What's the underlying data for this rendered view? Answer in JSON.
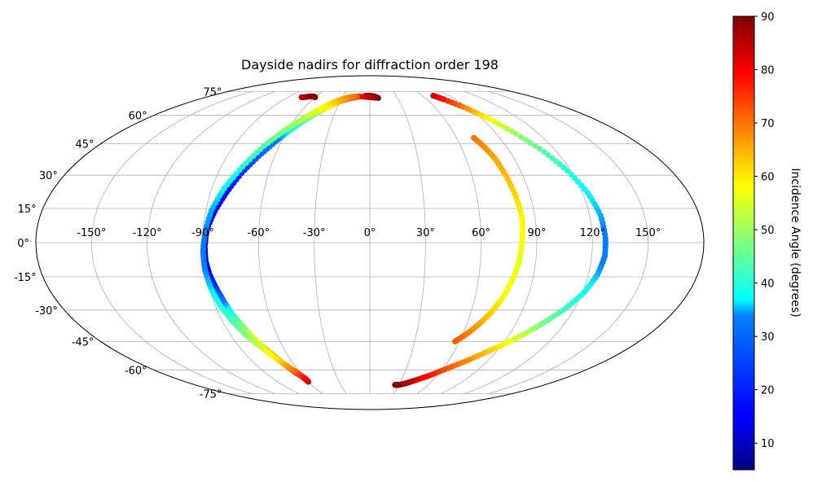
{
  "chart_data": {
    "type": "scatter",
    "projection": "mollweide",
    "title": "Dayside nadirs for diffraction order 198",
    "grid": true,
    "lon_ticks": [
      -150,
      -120,
      -90,
      -60,
      -30,
      0,
      30,
      60,
      90,
      120,
      150
    ],
    "lon_tick_labels": [
      "-150°",
      "-120°",
      "-90°",
      "-60°",
      "-30°",
      "0°",
      "30°",
      "60°",
      "90°",
      "120°",
      "150°"
    ],
    "lat_ticks": [
      -75,
      -60,
      -45,
      -30,
      -15,
      0,
      15,
      30,
      45,
      60,
      75
    ],
    "lat_tick_labels": [
      "-75°",
      "-60°",
      "-45°",
      "-30°",
      "-15°",
      "0°",
      "15°",
      "30°",
      "45°",
      "60°",
      "75°"
    ],
    "colorbar": {
      "label": "Incidence Angle (degrees)",
      "range": [
        5,
        90
      ],
      "ticks": [
        10,
        20,
        30,
        40,
        50,
        60,
        70,
        80,
        90
      ],
      "colormap": "jet"
    },
    "series": [
      {
        "points": [
          [
            -75,
            71,
            82
          ],
          [
            -72,
            71,
            85
          ],
          [
            -68,
            71.5,
            87
          ],
          [
            -65,
            71.5,
            89
          ],
          [
            -63,
            71.5,
            90
          ],
          [
            -60,
            71,
            90
          ]
        ]
      },
      {
        "points": [
          [
            -5,
            72,
            84
          ],
          [
            0,
            72,
            87
          ],
          [
            5,
            71.5,
            89
          ],
          [
            9,
            70.5,
            90
          ],
          [
            -12,
            71.5,
            80
          ],
          [
            -20,
            70.5,
            74
          ],
          [
            -28,
            69,
            67
          ],
          [
            -36,
            66,
            60
          ],
          [
            -44,
            62,
            52
          ],
          [
            -52,
            57,
            44
          ],
          [
            -58,
            52,
            38
          ],
          [
            -64,
            46,
            33
          ],
          [
            -70,
            39,
            29
          ],
          [
            -76,
            31,
            23
          ],
          [
            -81,
            22,
            18
          ],
          [
            -85,
            14,
            14
          ],
          [
            -88,
            6,
            10
          ],
          [
            -89,
            -2,
            8
          ],
          [
            -89,
            -8,
            10
          ],
          [
            -88,
            -14,
            16
          ],
          [
            -86,
            -20,
            24
          ],
          [
            -84,
            -26,
            32
          ],
          [
            -82,
            -32,
            40
          ],
          [
            -79,
            -38,
            48
          ],
          [
            -76,
            -44,
            56
          ],
          [
            -72,
            -50,
            64
          ],
          [
            -68,
            -56,
            72
          ],
          [
            -64,
            -61,
            79
          ],
          [
            -61,
            -64,
            84
          ],
          [
            -60,
            -66,
            86
          ],
          [
            -60,
            -67,
            89
          ]
        ]
      },
      {
        "points": [
          [
            -14,
            71.5,
            72
          ],
          [
            -22,
            71,
            69
          ],
          [
            -30,
            69.5,
            66
          ],
          [
            -38,
            67,
            62
          ],
          [
            -46,
            63,
            57
          ],
          [
            -54,
            58,
            52
          ],
          [
            -62,
            52,
            48
          ],
          [
            -70,
            44,
            44
          ],
          [
            -77,
            34,
            40
          ],
          [
            -83,
            24,
            37
          ],
          [
            -87,
            14,
            35
          ],
          [
            -89,
            4,
            34
          ],
          [
            -90,
            -4,
            33
          ],
          [
            -90,
            -12,
            34
          ],
          [
            -89,
            -20,
            36
          ],
          [
            -87,
            -28,
            39
          ],
          [
            -84,
            -35,
            43
          ],
          [
            -80,
            -42,
            48
          ],
          [
            -75,
            -48,
            54
          ],
          [
            -70,
            -54,
            60
          ],
          [
            -66,
            -58,
            66
          ],
          [
            -62,
            -62,
            72
          ],
          [
            -60,
            -65,
            78
          ],
          [
            -60,
            -67,
            82
          ]
        ]
      },
      {
        "points": [
          [
            72,
            72,
            84
          ],
          [
            78,
            69.5,
            78
          ],
          [
            88,
            64,
            68
          ],
          [
            96,
            58,
            58
          ],
          [
            104,
            50,
            50
          ],
          [
            112,
            41,
            44
          ],
          [
            118,
            32,
            40
          ],
          [
            123,
            22,
            37
          ],
          [
            126,
            12,
            35
          ],
          [
            127,
            2,
            33
          ],
          [
            127,
            -6,
            33
          ],
          [
            125,
            -14,
            35
          ],
          [
            121,
            -22,
            38
          ],
          [
            115,
            -29,
            42
          ],
          [
            108,
            -35,
            46
          ],
          [
            100,
            -41,
            52
          ],
          [
            92,
            -46,
            58
          ],
          [
            84,
            -50,
            63
          ],
          [
            74,
            -55,
            68
          ],
          [
            64,
            -59,
            72
          ],
          [
            54,
            -63,
            77
          ],
          [
            44,
            -66,
            82
          ],
          [
            36,
            -68,
            86
          ],
          [
            30,
            -69,
            88
          ],
          [
            26,
            -69,
            90
          ]
        ]
      },
      {
        "points": [
          [
            72,
            48,
            70
          ],
          [
            75,
            44,
            68
          ],
          [
            78,
            38,
            66
          ],
          [
            80,
            30,
            64
          ],
          [
            82,
            20,
            62
          ],
          [
            83,
            10,
            59
          ],
          [
            82,
            0,
            57
          ],
          [
            81,
            -8,
            56
          ],
          [
            79,
            -16,
            57
          ],
          [
            76,
            -24,
            59
          ],
          [
            72,
            -31,
            62
          ],
          [
            68,
            -36,
            65
          ],
          [
            64,
            -40,
            68
          ],
          [
            60,
            -43,
            70
          ],
          [
            57,
            -45,
            72
          ]
        ]
      }
    ]
  }
}
